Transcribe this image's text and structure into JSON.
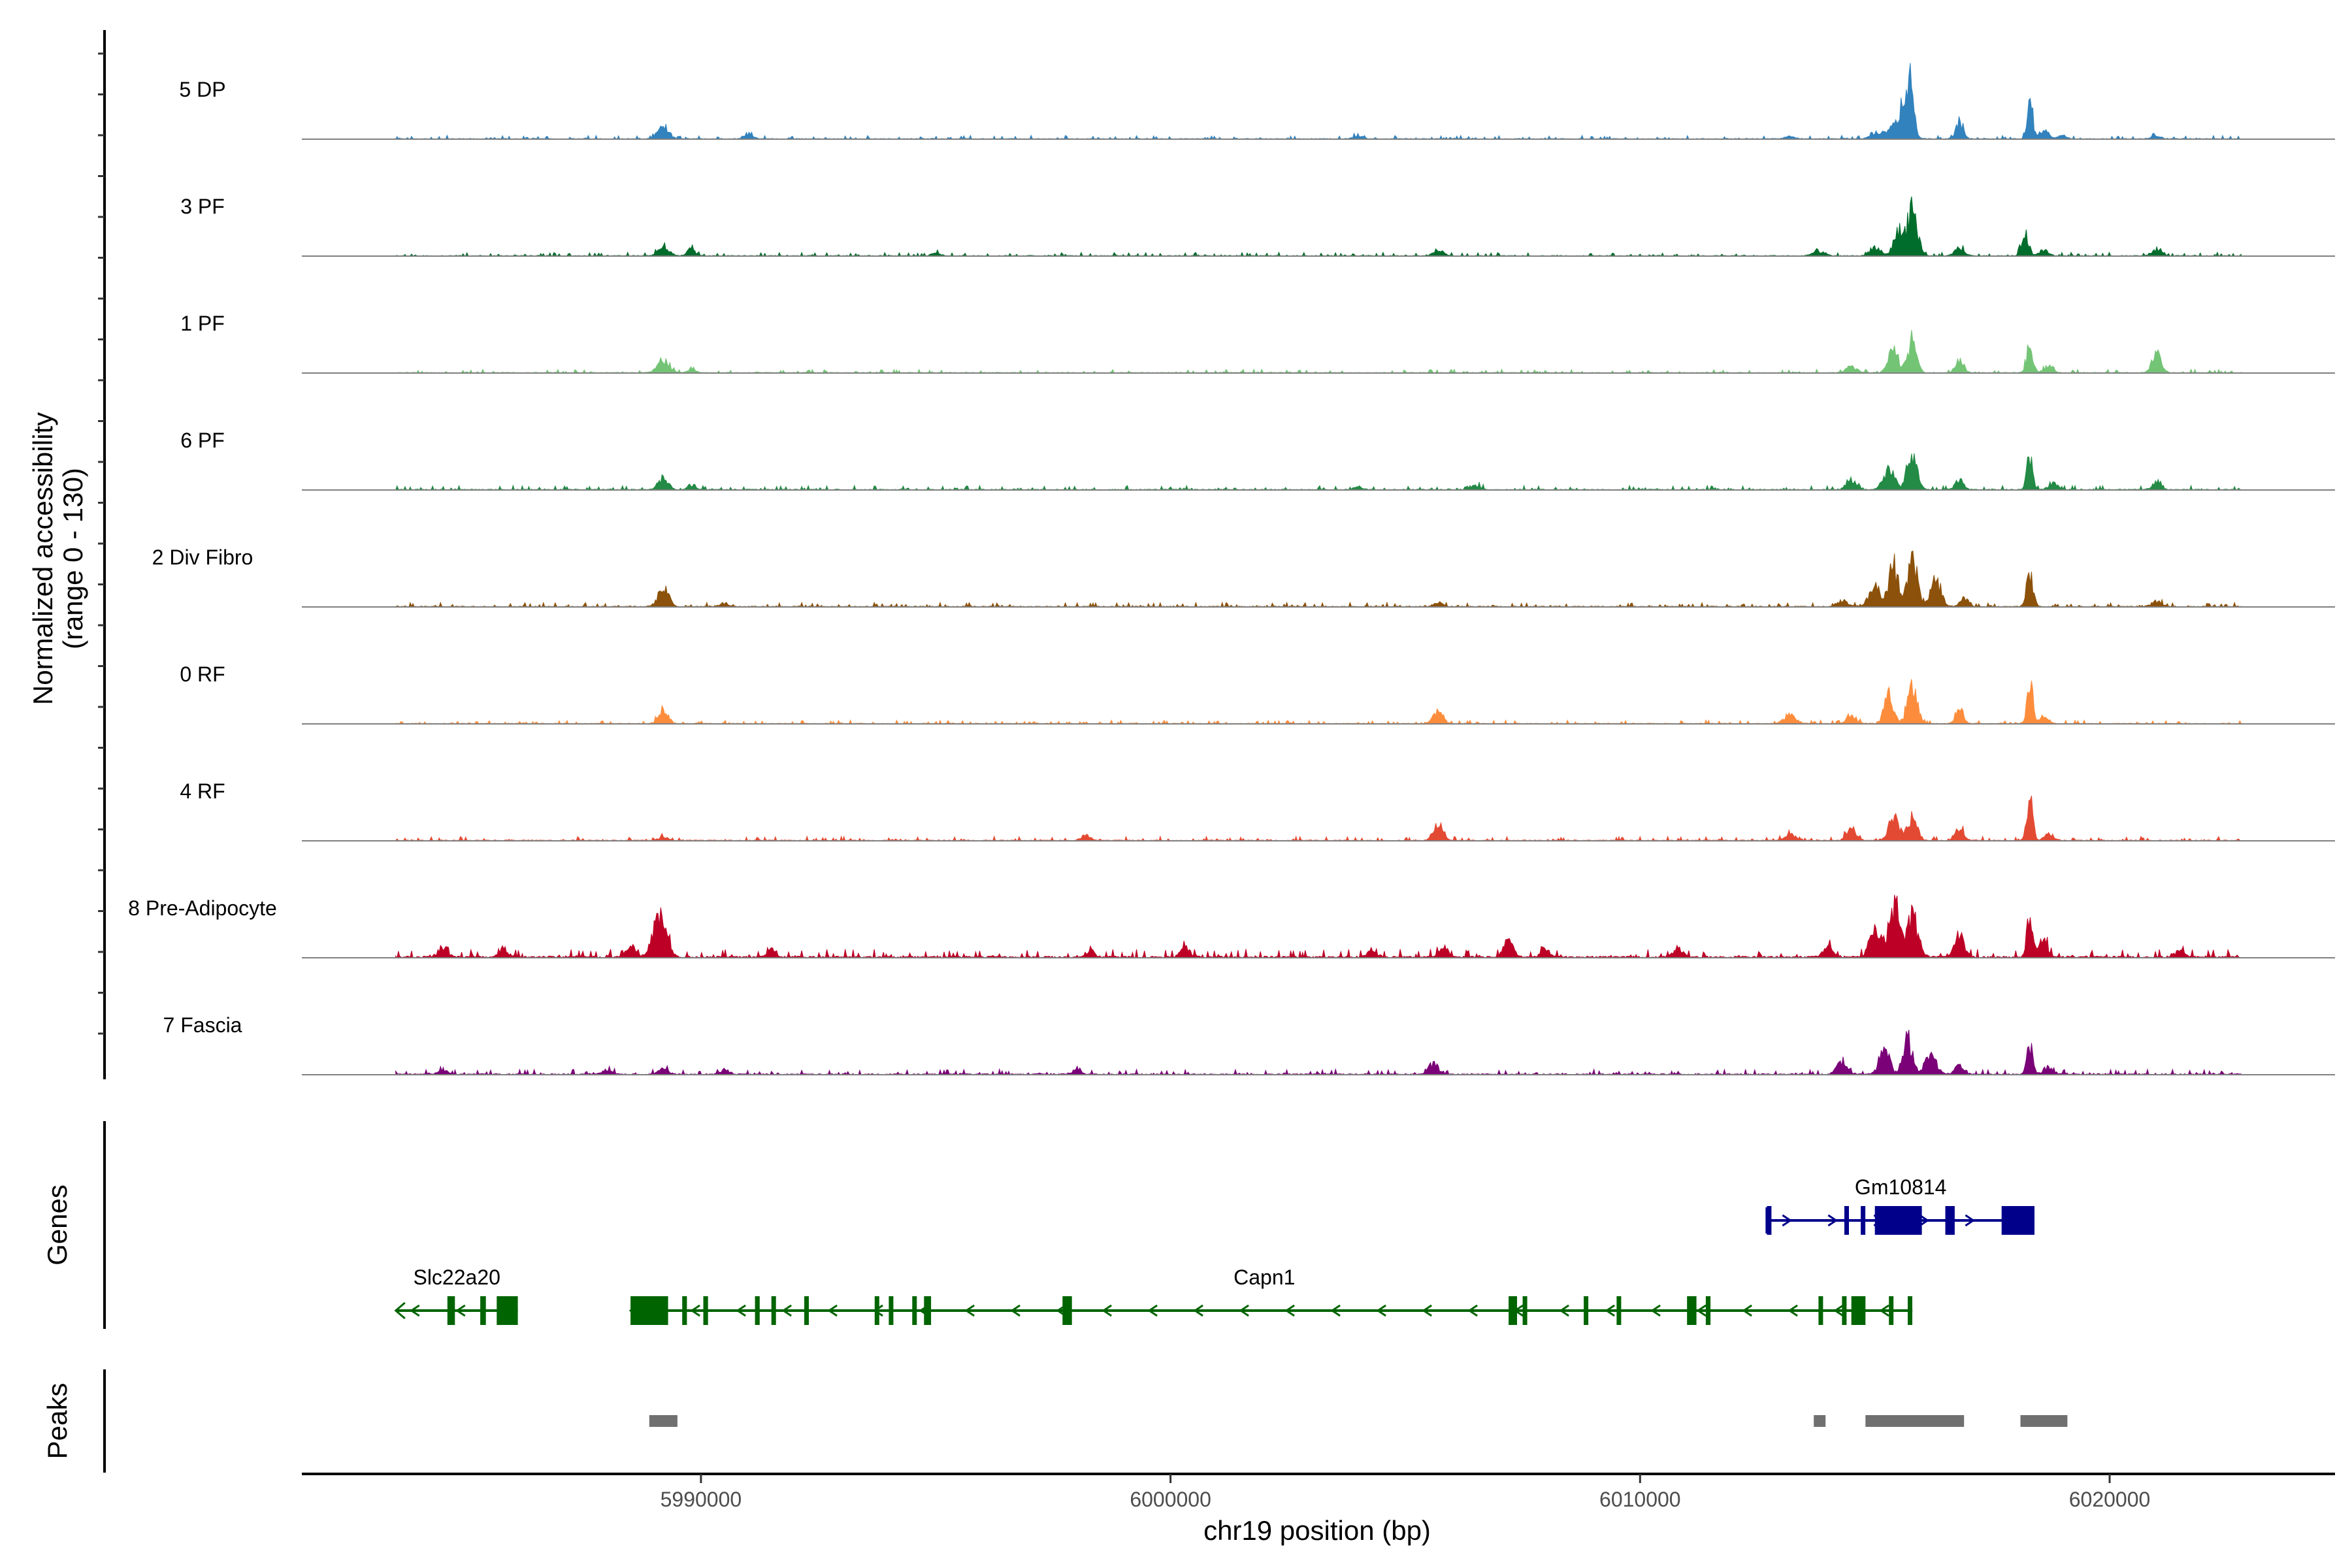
{
  "chart_data": {
    "type": "area",
    "title": "",
    "chromosome": "chr19",
    "xlabel": "chr19 position (bp)",
    "ylabel_line1": "Normalized accessibility",
    "ylabel_line2": "(range 0 - 130)",
    "y_range": [
      0,
      130
    ],
    "xlim": [
      5981500,
      6024800
    ],
    "data_extent": [
      5983500,
      6022800
    ],
    "x_ticks": [
      {
        "value": 5990000,
        "label": "5990000"
      },
      {
        "value": 6000000,
        "label": "6000000"
      },
      {
        "value": 6010000,
        "label": "6010000"
      },
      {
        "value": 6020000,
        "label": "6020000"
      }
    ],
    "baseline_color": "#808080",
    "series": [
      {
        "name": "5 DP",
        "color": "#3182bd",
        "noise": 1.5,
        "peaks": [
          [
            5989200,
            120,
            14
          ],
          [
            5991000,
            90,
            7
          ],
          [
            6004000,
            90,
            4
          ],
          [
            6013200,
            100,
            4
          ],
          [
            6015000,
            110,
            8
          ],
          [
            6015400,
            150,
            16
          ],
          [
            6015700,
            100,
            84
          ],
          [
            6016800,
            80,
            23
          ],
          [
            6018300,
            60,
            48
          ],
          [
            6018600,
            100,
            12
          ],
          [
            6019000,
            80,
            5
          ],
          [
            6021000,
            100,
            4
          ]
        ]
      },
      {
        "name": "3 PF",
        "color": "#006d2c",
        "noise": 1.5,
        "peaks": [
          [
            5989200,
            110,
            13
          ],
          [
            5989800,
            80,
            9
          ],
          [
            5995000,
            80,
            4
          ],
          [
            6005700,
            110,
            8
          ],
          [
            6013800,
            120,
            6
          ],
          [
            6015000,
            100,
            12
          ],
          [
            6015500,
            100,
            31
          ],
          [
            6015800,
            110,
            58
          ],
          [
            6016800,
            90,
            12
          ],
          [
            6018200,
            70,
            35
          ],
          [
            6018600,
            90,
            8
          ],
          [
            6021000,
            100,
            9
          ]
        ]
      },
      {
        "name": "1 PF",
        "color": "#74c476",
        "noise": 1.5,
        "peaks": [
          [
            5989200,
            120,
            17
          ],
          [
            5989800,
            80,
            5
          ],
          [
            6014500,
            110,
            8
          ],
          [
            6015400,
            110,
            28
          ],
          [
            6015800,
            90,
            45
          ],
          [
            6016800,
            90,
            15
          ],
          [
            6018300,
            70,
            34
          ],
          [
            6018700,
            90,
            10
          ],
          [
            6021000,
            100,
            23
          ]
        ]
      },
      {
        "name": "6 PF",
        "color": "#238b45",
        "noise": 1.8,
        "peaks": [
          [
            5989200,
            100,
            16
          ],
          [
            5989800,
            80,
            6
          ],
          [
            6004000,
            80,
            4
          ],
          [
            6006500,
            100,
            6
          ],
          [
            6014500,
            110,
            12
          ],
          [
            6015300,
            110,
            30
          ],
          [
            6015800,
            100,
            55
          ],
          [
            6016800,
            90,
            12
          ],
          [
            6018300,
            60,
            48
          ],
          [
            6018800,
            90,
            10
          ],
          [
            6021000,
            90,
            9
          ]
        ]
      },
      {
        "name": "2 Div Fibro",
        "color": "#8c510a",
        "noise": 1.8,
        "peaks": [
          [
            5989200,
            110,
            23
          ],
          [
            5990500,
            90,
            4
          ],
          [
            6005700,
            100,
            5
          ],
          [
            6014300,
            110,
            8
          ],
          [
            6015000,
            120,
            25
          ],
          [
            6015400,
            100,
            52
          ],
          [
            6015800,
            100,
            62
          ],
          [
            6016300,
            110,
            35
          ],
          [
            6016900,
            90,
            11
          ],
          [
            6018300,
            70,
            41
          ],
          [
            6021000,
            100,
            7
          ]
        ]
      },
      {
        "name": "0 RF",
        "color": "#fd8d3c",
        "noise": 1.5,
        "peaks": [
          [
            5989200,
            100,
            21
          ],
          [
            6005700,
            100,
            16
          ],
          [
            6013200,
            120,
            12
          ],
          [
            6014500,
            110,
            10
          ],
          [
            6015300,
            100,
            33
          ],
          [
            6015800,
            100,
            50
          ],
          [
            6016800,
            80,
            21
          ],
          [
            6018300,
            60,
            58
          ],
          [
            6018600,
            90,
            12
          ]
        ]
      },
      {
        "name": "4 RF",
        "color": "#e34a33",
        "noise": 1.8,
        "peaks": [
          [
            5989200,
            100,
            5
          ],
          [
            5998200,
            80,
            8
          ],
          [
            6005700,
            100,
            22
          ],
          [
            6013200,
            110,
            8
          ],
          [
            6014500,
            100,
            16
          ],
          [
            6015400,
            110,
            28
          ],
          [
            6015800,
            100,
            31
          ],
          [
            6016800,
            90,
            17
          ],
          [
            6018300,
            60,
            57
          ],
          [
            6018700,
            90,
            8
          ]
        ]
      },
      {
        "name": "8 Pre-Adipocyte",
        "color": "#bd0026",
        "noise": 3.5,
        "peaks": [
          [
            5984500,
            100,
            12
          ],
          [
            5985800,
            90,
            12
          ],
          [
            5988500,
            100,
            14
          ],
          [
            5989200,
            100,
            58
          ],
          [
            5989000,
            100,
            28
          ],
          [
            5991500,
            90,
            9
          ],
          [
            5998300,
            80,
            9
          ],
          [
            6000300,
            90,
            12
          ],
          [
            6004300,
            100,
            8
          ],
          [
            6005800,
            100,
            12
          ],
          [
            6007200,
            100,
            20
          ],
          [
            6008000,
            100,
            9
          ],
          [
            6010800,
            100,
            12
          ],
          [
            6014000,
            110,
            12
          ],
          [
            6015000,
            110,
            38
          ],
          [
            6015400,
            110,
            75
          ],
          [
            6015800,
            120,
            55
          ],
          [
            6016800,
            100,
            28
          ],
          [
            6018300,
            60,
            58
          ],
          [
            6018600,
            90,
            22
          ],
          [
            6021500,
            100,
            8
          ]
        ]
      },
      {
        "name": "7 Fascia",
        "color": "#7a0177",
        "noise": 2.2,
        "peaks": [
          [
            5984500,
            100,
            5
          ],
          [
            5988000,
            100,
            6
          ],
          [
            5989200,
            100,
            7
          ],
          [
            5990500,
            100,
            6
          ],
          [
            5998000,
            100,
            6
          ],
          [
            6005600,
            100,
            14
          ],
          [
            6014300,
            110,
            17
          ],
          [
            6015200,
            100,
            40
          ],
          [
            6015700,
            100,
            45
          ],
          [
            6016200,
            110,
            28
          ],
          [
            6016800,
            90,
            12
          ],
          [
            6018300,
            60,
            38
          ],
          [
            6018700,
            100,
            10
          ]
        ]
      }
    ],
    "genes_title": "Genes",
    "genes": [
      {
        "name": "Gm10814",
        "strand": "+",
        "color": "#00008b",
        "row": 0,
        "start": 6012700,
        "end": 6018400,
        "exons": [
          [
            6012700,
            6012740
          ],
          [
            6014350,
            6014440
          ],
          [
            6014700,
            6014780
          ],
          [
            6015000,
            6016000
          ],
          [
            6016500,
            6016700
          ],
          [
            6017700,
            6018400
          ]
        ]
      },
      {
        "name": "Slc22a20",
        "strand": "-",
        "color": "#006400",
        "row": 1,
        "start": 5983500,
        "end": 5986100,
        "exons": [
          [
            5984600,
            5984760
          ],
          [
            5985300,
            5985420
          ],
          [
            5985650,
            5986100
          ]
        ]
      },
      {
        "name": "Capn1",
        "strand": "-",
        "color": "#006400",
        "row": 1,
        "start": 5988500,
        "end": 6015800,
        "exons": [
          [
            5988500,
            5989300
          ],
          [
            5989600,
            5989700
          ],
          [
            5990050,
            5990150
          ],
          [
            5991150,
            5991250
          ],
          [
            5991500,
            5991580
          ],
          [
            5992200,
            5992280
          ],
          [
            5993700,
            5993760
          ],
          [
            5994000,
            5994060
          ],
          [
            5994500,
            5994580
          ],
          [
            5994750,
            5994900
          ],
          [
            5997700,
            5997900
          ],
          [
            6007200,
            6007380
          ],
          [
            6007500,
            6007580
          ],
          [
            6008800,
            6008880
          ],
          [
            6009500,
            6009580
          ],
          [
            6011000,
            6011200
          ],
          [
            6011400,
            6011500
          ],
          [
            6013800,
            6013880
          ],
          [
            6014300,
            6014380
          ],
          [
            6014500,
            6014800
          ],
          [
            6015300,
            6015380
          ],
          [
            6015700,
            6015780
          ]
        ]
      }
    ],
    "peaks_title": "Peaks",
    "peaks": [
      {
        "start": 5988900,
        "end": 5989500
      },
      {
        "start": 6013700,
        "end": 6013950
      },
      {
        "start": 6014800,
        "end": 6016900
      },
      {
        "start": 6018100,
        "end": 6019100
      }
    ]
  }
}
